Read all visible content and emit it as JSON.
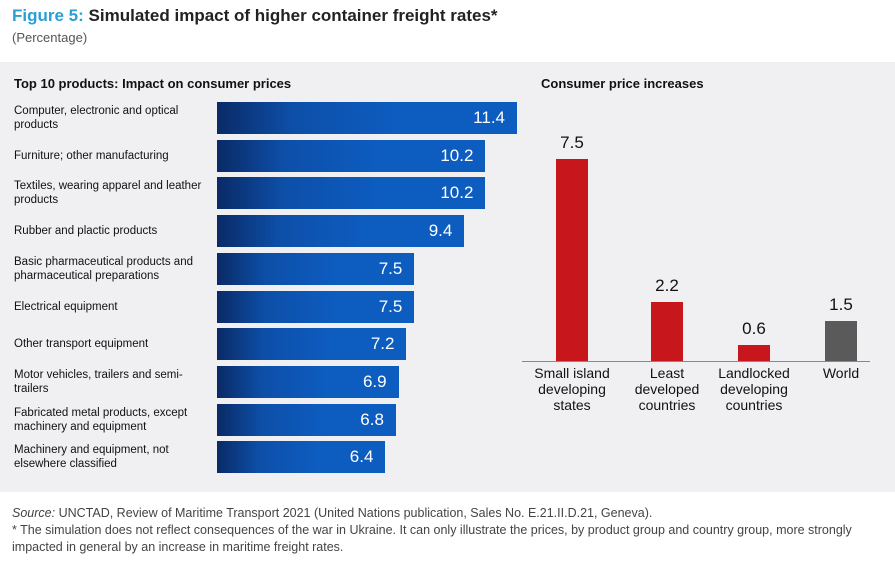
{
  "figure": {
    "label": "Figure 5:",
    "title": "Simulated impact of higher container freight rates*",
    "subtitle": "(Percentage)"
  },
  "chart_data": [
    {
      "type": "bar",
      "orientation": "horizontal",
      "title": "Top 10 products: Impact on consumer prices",
      "categories": [
        "Computer, electronic and optical products",
        "Furniture; other manufacturing",
        "Textiles, wearing apparel and leather products",
        "Rubber and plactic products",
        "Basic pharmaceutical products and pharmaceutical preparations",
        "Electrical equipment",
        "Other transport equipment",
        "Motor vehicles, trailers and semi-trailers",
        "Fabricated metal products, except machinery and equipment",
        "Machinery and equipment, not elsewhere classified"
      ],
      "values": [
        11.4,
        10.2,
        10.2,
        9.4,
        7.5,
        7.5,
        7.2,
        6.9,
        6.8,
        6.4
      ],
      "value_labels": [
        "11.4",
        "10.2",
        "10.2",
        "9.4",
        "7.5",
        "7.5",
        "7.2",
        "6.9",
        "6.8",
        "6.4"
      ],
      "color": "#0d5cc0"
    },
    {
      "type": "bar",
      "orientation": "vertical",
      "title": "Consumer price increases",
      "categories": [
        "Small island developing states",
        "Least developed countries",
        "Landlocked developing countries",
        "World"
      ],
      "values": [
        7.5,
        2.2,
        0.6,
        1.5
      ],
      "value_labels": [
        "7.5",
        "2.2",
        "0.6",
        "1.5"
      ],
      "colors": [
        "#c8161d",
        "#c8161d",
        "#c8161d",
        "#5a5a5a"
      ]
    }
  ],
  "footer": {
    "source_label": "Source:",
    "source_text": " UNCTAD, Review of Maritime Transport 2021 (United Nations publication, Sales No. E.21.II.D.21, Geneva).",
    "note": "* The simulation does not reflect consequences of the war in Ukraine. It can only illustrate the prices, by product group and country group, more strongly impacted in general by an increase in maritime freight rates."
  }
}
